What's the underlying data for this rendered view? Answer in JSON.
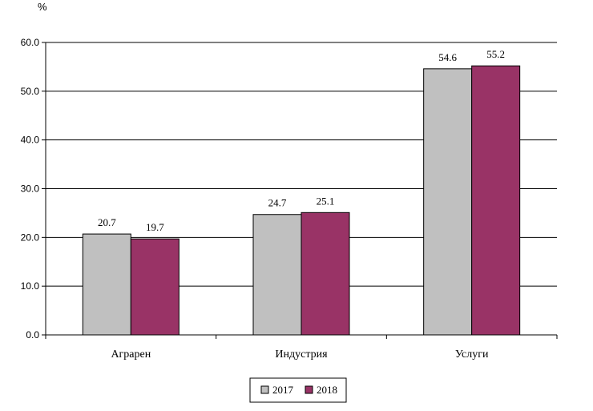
{
  "chart_data": {
    "type": "bar",
    "unit_label": "%",
    "categories": [
      "Аграрен",
      "Индустрия",
      "Услуги"
    ],
    "series": [
      {
        "name": "2017",
        "values": [
          20.7,
          24.7,
          54.6
        ],
        "color": "#c0c0c0"
      },
      {
        "name": "2018",
        "values": [
          19.7,
          25.1,
          55.2
        ],
        "color": "#993366"
      }
    ],
    "ylim": [
      0,
      60
    ],
    "yticks": [
      "0.0",
      "10.0",
      "20.0",
      "30.0",
      "40.0",
      "50.0",
      "60.0"
    ],
    "grid": true,
    "legend_position": "bottom-center"
  }
}
